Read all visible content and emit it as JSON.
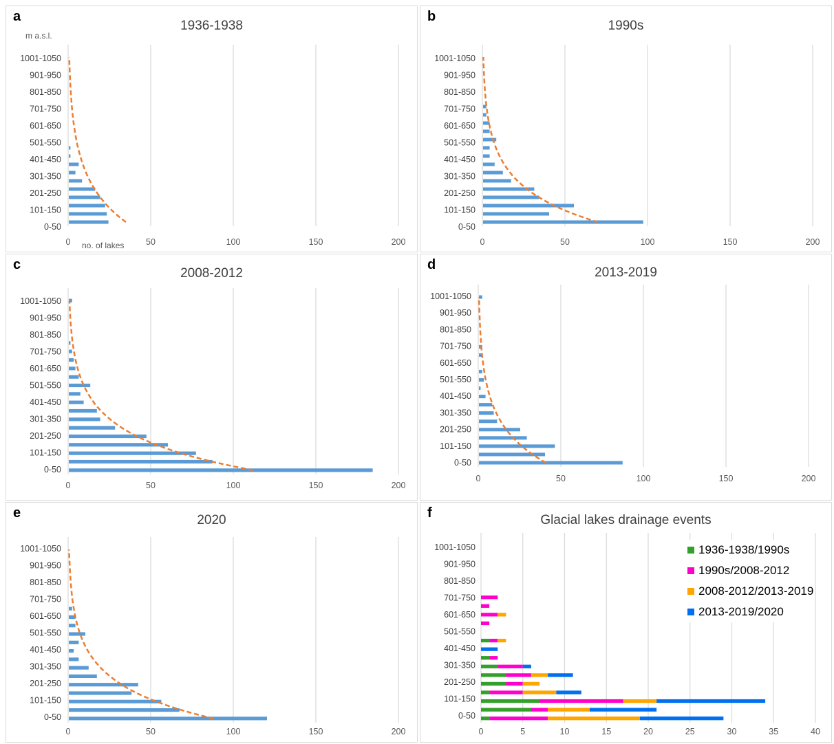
{
  "chart_data": [
    {
      "id": "a",
      "panel_letter": "a",
      "type": "bar",
      "orientation": "horizontal",
      "title": "1936-1938",
      "ylabel": "m  a.s.l.",
      "xlabel": "no. of lakes",
      "xlim": [
        0,
        200
      ],
      "xticks": [
        0,
        50,
        100,
        150,
        200
      ],
      "category_labels": [
        "1001-1050",
        "901-950",
        "801-850",
        "701-750",
        "601-650",
        "501-550",
        "401-450",
        "301-350",
        "201-250",
        "101-150",
        "0-50"
      ],
      "bars": [
        {
          "low": 0,
          "value": 24
        },
        {
          "low": 50,
          "value": 23
        },
        {
          "low": 100,
          "value": 22
        },
        {
          "low": 150,
          "value": 19
        },
        {
          "low": 200,
          "value": 16
        },
        {
          "low": 250,
          "value": 8
        },
        {
          "low": 300,
          "value": 4
        },
        {
          "low": 350,
          "value": 6
        },
        {
          "low": 400,
          "value": 1
        },
        {
          "low": 450,
          "value": 1
        },
        {
          "low": 500,
          "value": 0
        },
        {
          "low": 550,
          "value": 0
        },
        {
          "low": 600,
          "value": 0
        },
        {
          "low": 650,
          "value": 0
        },
        {
          "low": 700,
          "value": 0
        },
        {
          "low": 750,
          "value": 0
        },
        {
          "low": 800,
          "value": 0
        },
        {
          "low": 850,
          "value": 0
        },
        {
          "low": 900,
          "value": 0
        },
        {
          "low": 950,
          "value": 0
        },
        {
          "low": 1000,
          "value": 0
        }
      ],
      "trend": {
        "type": "exponential",
        "at_lowest": 35,
        "at_highest": 0.7
      },
      "grid": true
    },
    {
      "id": "b",
      "panel_letter": "b",
      "type": "bar",
      "orientation": "horizontal",
      "title": "1990s",
      "ylabel": "",
      "xlabel": "",
      "xlim": [
        0,
        200
      ],
      "xticks": [
        0,
        50,
        100,
        150,
        200
      ],
      "category_labels": [
        "1001-1050",
        "901-950",
        "801-850",
        "701-750",
        "601-650",
        "501-550",
        "401-450",
        "301-350",
        "201-250",
        "101-150",
        "0-50"
      ],
      "bars": [
        {
          "low": 0,
          "value": 97
        },
        {
          "low": 50,
          "value": 40
        },
        {
          "low": 100,
          "value": 55
        },
        {
          "low": 150,
          "value": 34
        },
        {
          "low": 200,
          "value": 31
        },
        {
          "low": 250,
          "value": 17
        },
        {
          "low": 300,
          "value": 12
        },
        {
          "low": 350,
          "value": 7
        },
        {
          "low": 400,
          "value": 4
        },
        {
          "low": 450,
          "value": 4
        },
        {
          "low": 500,
          "value": 8
        },
        {
          "low": 550,
          "value": 4
        },
        {
          "low": 600,
          "value": 4
        },
        {
          "low": 650,
          "value": 2
        },
        {
          "low": 700,
          "value": 2
        },
        {
          "low": 750,
          "value": 0
        },
        {
          "low": 800,
          "value": 0
        },
        {
          "low": 850,
          "value": 0
        },
        {
          "low": 900,
          "value": 0
        },
        {
          "low": 950,
          "value": 0
        },
        {
          "low": 1000,
          "value": 0
        }
      ],
      "trend": {
        "type": "exponential",
        "at_lowest": 70,
        "at_highest": 0.6
      },
      "grid": true
    },
    {
      "id": "c",
      "panel_letter": "c",
      "type": "bar",
      "orientation": "horizontal",
      "title": "2008-2012",
      "ylabel": "",
      "xlabel": "",
      "xlim": [
        0,
        200
      ],
      "xticks": [
        0,
        50,
        100,
        150,
        200
      ],
      "category_labels": [
        "1001-1050",
        "901-950",
        "801-850",
        "701-750",
        "601-650",
        "501-550",
        "401-450",
        "301-350",
        "201-250",
        "101-150",
        "0-50"
      ],
      "bars": [
        {
          "low": 0,
          "value": 184
        },
        {
          "low": 50,
          "value": 87
        },
        {
          "low": 100,
          "value": 77
        },
        {
          "low": 150,
          "value": 60
        },
        {
          "low": 200,
          "value": 47
        },
        {
          "low": 250,
          "value": 28
        },
        {
          "low": 300,
          "value": 19
        },
        {
          "low": 350,
          "value": 17
        },
        {
          "low": 400,
          "value": 9
        },
        {
          "low": 450,
          "value": 7
        },
        {
          "low": 500,
          "value": 13
        },
        {
          "low": 550,
          "value": 6
        },
        {
          "low": 600,
          "value": 4
        },
        {
          "low": 650,
          "value": 3
        },
        {
          "low": 700,
          "value": 2
        },
        {
          "low": 750,
          "value": 1
        },
        {
          "low": 800,
          "value": 0
        },
        {
          "low": 850,
          "value": 0
        },
        {
          "low": 900,
          "value": 0
        },
        {
          "low": 950,
          "value": 0
        },
        {
          "low": 1000,
          "value": 2
        }
      ],
      "trend": {
        "type": "exponential",
        "at_lowest": 112,
        "at_highest": 0.8
      },
      "grid": true
    },
    {
      "id": "d",
      "panel_letter": "d",
      "type": "bar",
      "orientation": "horizontal",
      "title": "2013-2019",
      "ylabel": "",
      "xlabel": "",
      "xlim": [
        0,
        200
      ],
      "xticks": [
        0,
        50,
        100,
        150,
        200
      ],
      "category_labels": [
        "1001-1050",
        "901-950",
        "801-850",
        "701-750",
        "601-650",
        "501-550",
        "401-450",
        "301-350",
        "201-250",
        "101-150",
        "0-50"
      ],
      "bars": [
        {
          "low": 0,
          "value": 87
        },
        {
          "low": 50,
          "value": 40
        },
        {
          "low": 100,
          "value": 46
        },
        {
          "low": 150,
          "value": 29
        },
        {
          "low": 200,
          "value": 25
        },
        {
          "low": 250,
          "value": 11
        },
        {
          "low": 300,
          "value": 9
        },
        {
          "low": 350,
          "value": 8
        },
        {
          "low": 400,
          "value": 4
        },
        {
          "low": 450,
          "value": 1
        },
        {
          "low": 500,
          "value": 3
        },
        {
          "low": 550,
          "value": 2
        },
        {
          "low": 600,
          "value": 0
        },
        {
          "low": 650,
          "value": 2
        },
        {
          "low": 700,
          "value": 2
        },
        {
          "low": 750,
          "value": 0
        },
        {
          "low": 800,
          "value": 0
        },
        {
          "low": 850,
          "value": 0
        },
        {
          "low": 900,
          "value": 0
        },
        {
          "low": 950,
          "value": 0
        },
        {
          "low": 1000,
          "value": 2
        }
      ],
      "trend": {
        "type": "exponential",
        "at_lowest": 41,
        "at_highest": 0.5
      },
      "grid": true
    },
    {
      "id": "e",
      "panel_letter": "e",
      "type": "bar",
      "orientation": "horizontal",
      "title": "2020",
      "ylabel": "",
      "xlabel": "",
      "xlim": [
        0,
        200
      ],
      "xticks": [
        0,
        50,
        100,
        150,
        200
      ],
      "category_labels": [
        "1001-1050",
        "901-950",
        "801-850",
        "701-750",
        "601-650",
        "501-550",
        "401-450",
        "301-350",
        "201-250",
        "101-150",
        "0-50"
      ],
      "bars": [
        {
          "low": 0,
          "value": 120
        },
        {
          "low": 50,
          "value": 67
        },
        {
          "low": 100,
          "value": 56
        },
        {
          "low": 150,
          "value": 38
        },
        {
          "low": 200,
          "value": 42
        },
        {
          "low": 250,
          "value": 17
        },
        {
          "low": 300,
          "value": 12
        },
        {
          "low": 350,
          "value": 6
        },
        {
          "low": 400,
          "value": 3
        },
        {
          "low": 450,
          "value": 6
        },
        {
          "low": 500,
          "value": 10
        },
        {
          "low": 550,
          "value": 4
        },
        {
          "low": 600,
          "value": 4
        },
        {
          "low": 650,
          "value": 2
        },
        {
          "low": 700,
          "value": 0
        },
        {
          "low": 750,
          "value": 0
        },
        {
          "low": 800,
          "value": 0
        },
        {
          "low": 850,
          "value": 0
        },
        {
          "low": 900,
          "value": 0
        },
        {
          "low": 950,
          "value": 0
        },
        {
          "low": 1000,
          "value": 0
        }
      ],
      "trend": {
        "type": "exponential",
        "at_lowest": 88,
        "at_highest": 0.6
      },
      "grid": true
    },
    {
      "id": "f",
      "panel_letter": "f",
      "type": "bar",
      "orientation": "horizontal",
      "stacked": true,
      "title": "Glacial lakes drainage events",
      "ylabel": "",
      "xlabel": "",
      "xlim": [
        0,
        40
      ],
      "xticks": [
        0,
        5,
        10,
        15,
        20,
        25,
        30,
        35,
        40
      ],
      "category_labels": [
        "1001-1050",
        "901-950",
        "801-850",
        "701-750",
        "601-650",
        "501-550",
        "401-450",
        "301-350",
        "201-250",
        "101-150",
        "0-50"
      ],
      "legend_position": "top-right",
      "series": [
        {
          "name": "1936-1938/1990s",
          "color": "#33a02c"
        },
        {
          "name": "1990s/2008-2012",
          "color": "#ff00cc"
        },
        {
          "name": "2008-2012/2013-2019",
          "color": "#ffa500"
        },
        {
          "name": "2013-2019/2020",
          "color": "#0070f0"
        }
      ],
      "bars": [
        {
          "low": 0,
          "values": [
            1,
            7,
            11,
            10
          ]
        },
        {
          "low": 50,
          "values": [
            6,
            2,
            5,
            8
          ]
        },
        {
          "low": 100,
          "values": [
            7,
            10,
            4,
            13
          ]
        },
        {
          "low": 150,
          "values": [
            1,
            4,
            4,
            3
          ]
        },
        {
          "low": 200,
          "values": [
            3,
            2,
            2,
            0
          ]
        },
        {
          "low": 250,
          "values": [
            3,
            3,
            2,
            3
          ]
        },
        {
          "low": 300,
          "values": [
            2,
            3,
            0,
            1
          ]
        },
        {
          "low": 350,
          "values": [
            1,
            1,
            0,
            0
          ]
        },
        {
          "low": 400,
          "values": [
            0,
            0,
            0,
            2
          ]
        },
        {
          "low": 450,
          "values": [
            1,
            1,
            1,
            0
          ]
        },
        {
          "low": 500,
          "values": [
            0,
            0,
            0,
            0
          ]
        },
        {
          "low": 550,
          "values": [
            0,
            1,
            0,
            0
          ]
        },
        {
          "low": 600,
          "values": [
            0,
            2,
            1,
            0
          ]
        },
        {
          "low": 650,
          "values": [
            0,
            1,
            0,
            0
          ]
        },
        {
          "low": 700,
          "values": [
            0,
            2,
            0,
            0
          ]
        },
        {
          "low": 750,
          "values": [
            0,
            0,
            0,
            0
          ]
        },
        {
          "low": 800,
          "values": [
            0,
            0,
            0,
            0
          ]
        },
        {
          "low": 850,
          "values": [
            0,
            0,
            0,
            0
          ]
        },
        {
          "low": 900,
          "values": [
            0,
            0,
            0,
            0
          ]
        },
        {
          "low": 950,
          "values": [
            0,
            0,
            0,
            0
          ]
        },
        {
          "low": 1000,
          "values": [
            0,
            0,
            0,
            0
          ]
        }
      ],
      "grid": true
    }
  ],
  "colors": {
    "bar": "#5b9bd5",
    "trend": "#ed7d31",
    "grid": "#d9d9d9",
    "tick_text": "#595959"
  }
}
